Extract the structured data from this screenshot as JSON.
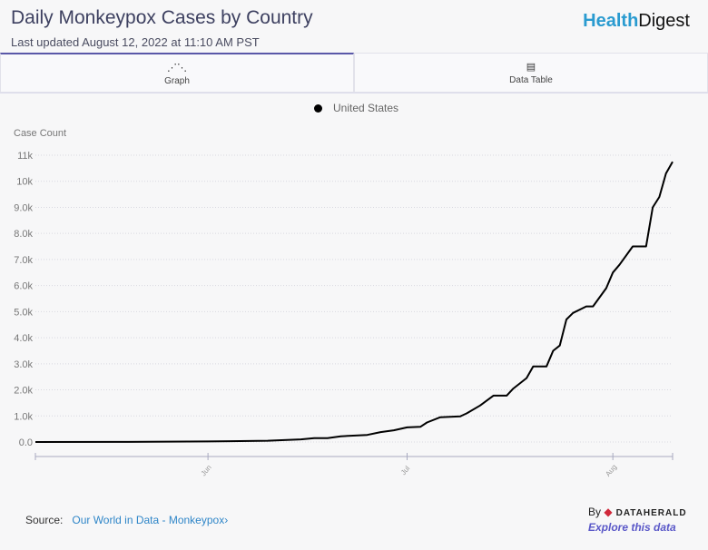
{
  "header": {
    "title": "Daily Monkeypox Cases by Country",
    "subtitle": "Last updated August 12, 2022 at 11:10 AM PST",
    "logo_a": "Health",
    "logo_b": "Digest"
  },
  "tabs": [
    {
      "label": "Graph",
      "icon": "line-chart-icon"
    },
    {
      "label": "Data Table",
      "icon": "table-icon"
    }
  ],
  "footer": {
    "source_label": "Source:",
    "source_link": "Our World in Data - Monkeypox",
    "by": "By",
    "brand": "DATAHERALD",
    "explore": "Explore this data"
  },
  "chart_data": {
    "type": "line",
    "title": "",
    "xlabel": "",
    "ylabel": "Case Count",
    "ylim": [
      0,
      11000
    ],
    "xlim": [
      "2022-05-06",
      "2022-08-10"
    ],
    "yticks": [
      0,
      1000,
      2000,
      3000,
      4000,
      5000,
      6000,
      7000,
      8000,
      9000,
      10000,
      11000
    ],
    "ytick_labels": [
      "0.0",
      "1.0k",
      "2.0k",
      "3.0k",
      "4.0k",
      "5.0k",
      "6.0k",
      "7.0k",
      "8.0k",
      "9.0k",
      "10k",
      "11k"
    ],
    "xticks": [
      "2022-06-01",
      "2022-07-01",
      "2022-08-01"
    ],
    "xtick_labels": [
      "Jun",
      "Jul",
      "Aug"
    ],
    "legend": "top-center",
    "grid": "horizontal-dotted",
    "series": [
      {
        "name": "United States",
        "color": "#000000",
        "x": [
          "2022-05-06",
          "2022-05-20",
          "2022-06-01",
          "2022-06-10",
          "2022-06-15",
          "2022-06-17",
          "2022-06-19",
          "2022-06-21",
          "2022-06-25",
          "2022-06-27",
          "2022-06-29",
          "2022-07-01",
          "2022-07-03",
          "2022-07-04",
          "2022-07-06",
          "2022-07-09",
          "2022-07-10",
          "2022-07-12",
          "2022-07-14",
          "2022-07-16",
          "2022-07-17",
          "2022-07-19",
          "2022-07-20",
          "2022-07-22",
          "2022-07-23",
          "2022-07-24",
          "2022-07-25",
          "2022-07-26",
          "2022-07-28",
          "2022-07-29",
          "2022-07-31",
          "2022-08-01",
          "2022-08-02",
          "2022-08-04",
          "2022-08-06",
          "2022-08-07",
          "2022-08-08",
          "2022-08-09",
          "2022-08-10"
        ],
        "y": [
          0,
          5,
          20,
          50,
          100,
          150,
          150,
          220,
          270,
          380,
          450,
          560,
          580,
          750,
          950,
          980,
          1100,
          1400,
          1780,
          1780,
          2050,
          2450,
          2900,
          2900,
          3500,
          3700,
          4700,
          4950,
          5200,
          5200,
          5900,
          6500,
          6800,
          7500,
          7500,
          9000,
          9400,
          10300,
          10750
        ]
      }
    ]
  }
}
